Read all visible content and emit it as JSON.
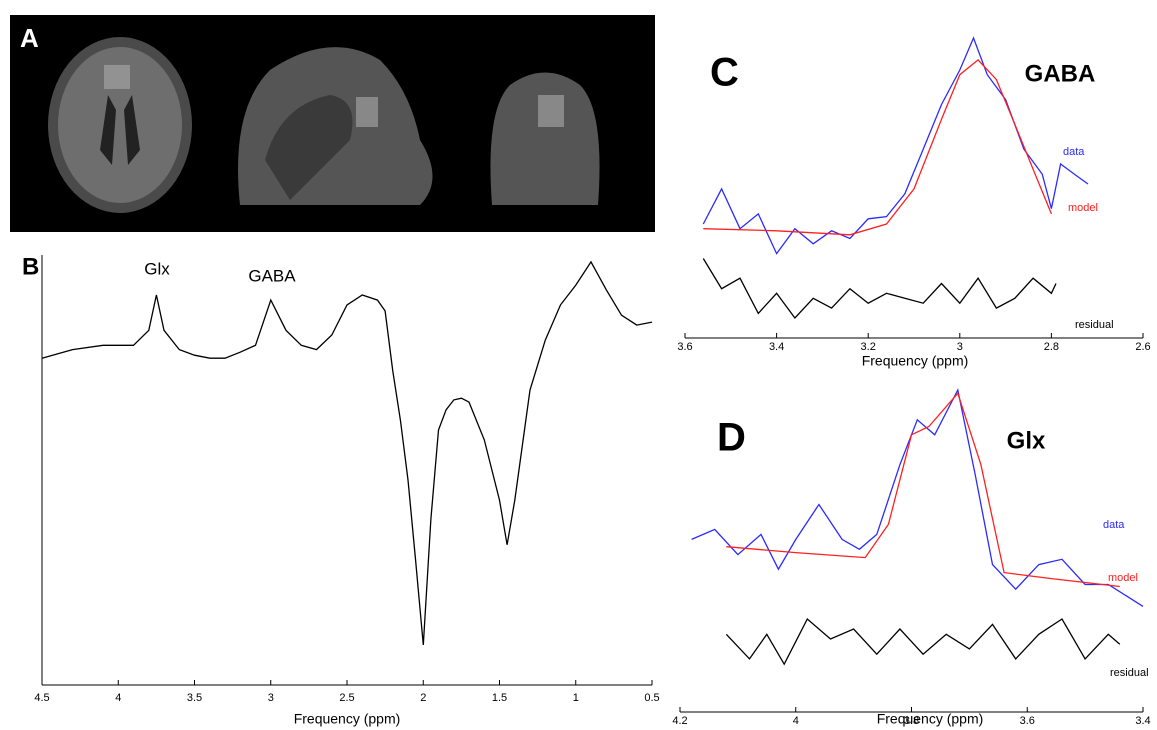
{
  "chart_data": [
    {
      "type": "image",
      "panel": "A"
    },
    {
      "type": "line",
      "panel": "B",
      "annotations": [
        "Glx",
        "GABA"
      ],
      "xlabel": "Frequency (ppm)",
      "xlim": [
        4.5,
        0.5
      ],
      "xticks": [
        4.5,
        4,
        3.5,
        3,
        2.5,
        2,
        1.5,
        1,
        0.5
      ],
      "ylim": [
        0,
        100
      ],
      "series": [
        {
          "color": "#000000",
          "x": [
            4.5,
            4.3,
            4.1,
            3.9,
            3.8,
            3.75,
            3.7,
            3.6,
            3.5,
            3.4,
            3.3,
            3.2,
            3.1,
            3.0,
            2.9,
            2.8,
            2.7,
            2.6,
            2.5,
            2.4,
            2.3,
            2.25,
            2.2,
            2.15,
            2.1,
            2.05,
            2.0,
            1.95,
            1.9,
            1.85,
            1.8,
            1.75,
            1.7,
            1.6,
            1.5,
            1.45,
            1.4,
            1.3,
            1.2,
            1.1,
            1.0,
            0.9,
            0.8,
            0.7,
            0.6,
            0.5
          ],
          "values": [
            76,
            78,
            79,
            79,
            82.5,
            90.7,
            82.5,
            78,
            76.7,
            76,
            76,
            77.4,
            79,
            89.5,
            82.5,
            79,
            78,
            81.4,
            88.4,
            90.7,
            89.5,
            87,
            73,
            61.6,
            47.7,
            29,
            9.3,
            38.6,
            59.3,
            64,
            66.3,
            66.7,
            65.8,
            57,
            43,
            32.6,
            43,
            68.6,
            80.2,
            88.4,
            93,
            98.4,
            91.9,
            86,
            83.7,
            84.4
          ]
        }
      ]
    },
    {
      "type": "line",
      "panel": "C",
      "title": "GABA",
      "xlabel": "Frequency (ppm)",
      "xlim": [
        3.6,
        2.6
      ],
      "xticks": [
        3.6,
        3.4,
        3.2,
        3,
        2.8,
        2.6
      ],
      "ylim": [
        0,
        100
      ],
      "series": [
        {
          "name": "data",
          "color": "#2b2bff",
          "x": [
            3.56,
            3.52,
            3.48,
            3.44,
            3.4,
            3.36,
            3.32,
            3.28,
            3.24,
            3.2,
            3.16,
            3.12,
            3.08,
            3.04,
            3.0,
            2.97,
            2.94,
            2.9,
            2.86,
            2.82,
            2.8,
            2.78,
            2.75,
            2.72
          ],
          "values": [
            37,
            48.4,
            35.5,
            40.3,
            27.4,
            35.5,
            30.6,
            34.8,
            32.3,
            38.7,
            39.4,
            46.8,
            61.3,
            75.8,
            87,
            97.4,
            85.5,
            77.4,
            61.3,
            53.2,
            42,
            56.5,
            53.2,
            50
          ]
        },
        {
          "name": "model",
          "color": "#ff2020",
          "x": [
            3.56,
            3.4,
            3.24,
            3.16,
            3.1,
            3.04,
            3.0,
            2.96,
            2.92,
            2.88,
            2.84,
            2.8
          ],
          "values": [
            35.5,
            34.8,
            33.5,
            37,
            48.4,
            71,
            85.5,
            90.3,
            83.9,
            69.4,
            54.8,
            40.3
          ]
        },
        {
          "name": "residual",
          "color": "#000000",
          "x": [
            3.56,
            3.52,
            3.48,
            3.44,
            3.4,
            3.36,
            3.32,
            3.28,
            3.24,
            3.2,
            3.16,
            3.12,
            3.08,
            3.04,
            3.0,
            2.96,
            2.92,
            2.88,
            2.84,
            2.8,
            2.79
          ],
          "values": [
            25.8,
            16,
            19.4,
            8,
            14.5,
            6.5,
            12.9,
            9.7,
            16,
            11.3,
            14.5,
            12.9,
            11.3,
            17.7,
            11.3,
            19.4,
            9.7,
            12.9,
            19.4,
            14.5,
            17.7
          ]
        }
      ]
    },
    {
      "type": "line",
      "panel": "D",
      "title": "Glx",
      "xlabel": "Frequency (ppm)",
      "xlim": [
        4.2,
        3.4
      ],
      "xticks": [
        4.2,
        4,
        3.8,
        3.6,
        3.4
      ],
      "ylim": [
        0,
        100
      ],
      "series": [
        {
          "name": "data",
          "color": "#2b2bff",
          "x": [
            4.18,
            4.14,
            4.1,
            4.06,
            4.03,
            4.0,
            3.96,
            3.92,
            3.89,
            3.86,
            3.82,
            3.79,
            3.76,
            3.72,
            3.69,
            3.66,
            3.62,
            3.58,
            3.54,
            3.5,
            3.46,
            3.42,
            3.4
          ],
          "values": [
            52,
            55,
            47.4,
            53.5,
            43,
            52,
            62.5,
            52,
            49,
            53.5,
            74.5,
            88,
            83.5,
            97,
            71.5,
            44.4,
            37,
            44.4,
            46,
            38.4,
            38.4,
            34,
            31.8
          ]
        },
        {
          "name": "model",
          "color": "#ff2020",
          "x": [
            4.12,
            4.0,
            3.88,
            3.84,
            3.8,
            3.77,
            3.72,
            3.68,
            3.64,
            3.56,
            3.44
          ],
          "values": [
            49.8,
            48,
            46.5,
            56.5,
            83.5,
            86,
            96,
            74.5,
            42,
            40.2,
            37.8
          ]
        },
        {
          "name": "residual",
          "color": "#000000",
          "x": [
            4.12,
            4.08,
            4.05,
            4.02,
            3.98,
            3.94,
            3.9,
            3.86,
            3.82,
            3.78,
            3.74,
            3.7,
            3.66,
            3.62,
            3.58,
            3.54,
            3.5,
            3.46,
            3.44
          ],
          "values": [
            23.4,
            16,
            23.4,
            14.4,
            28,
            22,
            25,
            17.4,
            25,
            17.4,
            23.4,
            19,
            26.4,
            16,
            23.4,
            28,
            16,
            23.4,
            20.4
          ]
        }
      ]
    }
  ]
}
